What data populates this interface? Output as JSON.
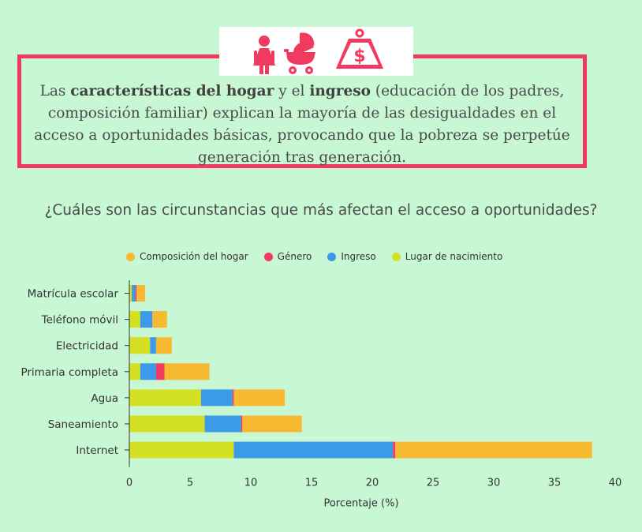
{
  "icons": [
    "woman-icon",
    "baby-stroller-icon",
    "money-weight-icon"
  ],
  "colors": {
    "accent": "#f03a5f",
    "background": "#c8f7d4",
    "composicion": "#f8b932",
    "genero": "#f03a5f",
    "ingreso": "#3b9be8",
    "lugar": "#d4e022"
  },
  "quote": {
    "p1": "Las ",
    "b1": "características del hogar",
    "p2": " y el ",
    "b2": "ingreso",
    "p3": " (educación de los padres, composición familiar) explican la mayoría de las desigualdades en el acceso a oportunidades básicas, provocando que la pobreza se perpetúe generación tras generación."
  },
  "question": "¿Cuáles son las circunstancias que más afectan el acceso a oportunidades?",
  "chart_data": {
    "type": "bar",
    "orientation": "horizontal",
    "stacked": true,
    "categories": [
      "Matrícula escolar",
      "Teléfono móvil",
      "Electricidad",
      "Primaria completa",
      "Agua",
      "Saneamiento",
      "Internet"
    ],
    "series": [
      {
        "name": "Lugar de nacimiento",
        "color": "#d4e022",
        "values": [
          0.2,
          0.9,
          1.7,
          0.9,
          5.9,
          6.2,
          8.6
        ]
      },
      {
        "name": "Ingreso",
        "color": "#3b9be8",
        "values": [
          0.3,
          1.0,
          0.5,
          1.3,
          2.6,
          3.0,
          13.1
        ]
      },
      {
        "name": "Género",
        "color": "#f03a5f",
        "values": [
          0.1,
          0.0,
          0.0,
          0.7,
          0.1,
          0.1,
          0.2
        ]
      },
      {
        "name": "Composición del hogar",
        "color": "#f8b932",
        "values": [
          0.7,
          1.2,
          1.3,
          3.7,
          4.2,
          4.9,
          16.2
        ]
      }
    ],
    "legend_order": [
      "Composición del hogar",
      "Género",
      "Ingreso",
      "Lugar de nacimiento"
    ],
    "xlabel": "Porcentaje (%)",
    "xlim": [
      0,
      40
    ],
    "xticks": [
      0,
      5,
      10,
      15,
      20,
      25,
      30,
      35,
      40
    ],
    "grid": false,
    "legend_position": "top"
  }
}
